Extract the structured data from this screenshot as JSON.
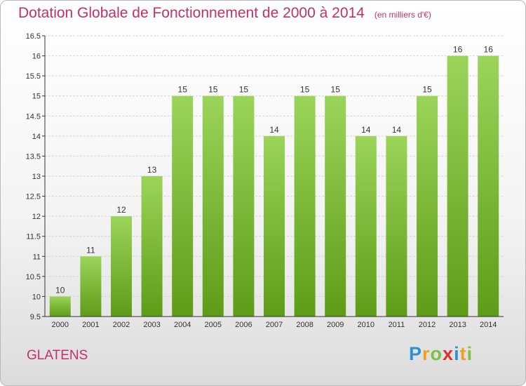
{
  "title": "Dotation Globale de Fonctionnement de 2000 à 2014",
  "unit_note": "(en milliers d'€)",
  "commune": "GLATENS",
  "logo": {
    "letters": [
      "P",
      "r",
      "o",
      "x",
      "i",
      "t",
      "i"
    ],
    "colors": [
      "#2f8fd0",
      "#f0a020",
      "#7cc142",
      "#e0302a",
      "#2f8fd0",
      "#f0a020",
      "#7cc142"
    ]
  },
  "colors": {
    "title": "#c0306a",
    "bar_light": "#9bd45a",
    "bar_dark": "#5e9c18",
    "axis": "#333333"
  },
  "chart_data": {
    "type": "bar",
    "title": "Dotation Globale de Fonctionnement de 2000 à 2014",
    "subtitle": "(en milliers d'€)",
    "xlabel": "",
    "ylabel": "",
    "categories": [
      "2000",
      "2001",
      "2002",
      "2003",
      "2004",
      "2005",
      "2006",
      "2007",
      "2008",
      "2009",
      "2010",
      "2011",
      "2012",
      "2013",
      "2014"
    ],
    "values": [
      10,
      11,
      12,
      13,
      15,
      15,
      15,
      14,
      15,
      15,
      14,
      14,
      15,
      16,
      16
    ],
    "data_labels": [
      "10",
      "11",
      "12",
      "13",
      "15",
      "15",
      "15",
      "14",
      "15",
      "15",
      "14",
      "14",
      "15",
      "16",
      "16"
    ],
    "ylim": [
      9.5,
      16.5
    ],
    "yticks": [
      9.5,
      10,
      10.5,
      11,
      11.5,
      12,
      12.5,
      13,
      13.5,
      14,
      14.5,
      15,
      15.5,
      16,
      16.5
    ],
    "ytick_labels": [
      "9.5",
      "10",
      "10.5",
      "11",
      "11.5",
      "12",
      "12.5",
      "13",
      "13.5",
      "14",
      "14.5",
      "15",
      "15.5",
      "16",
      "16.5"
    ],
    "grid": true,
    "legend": "none"
  }
}
